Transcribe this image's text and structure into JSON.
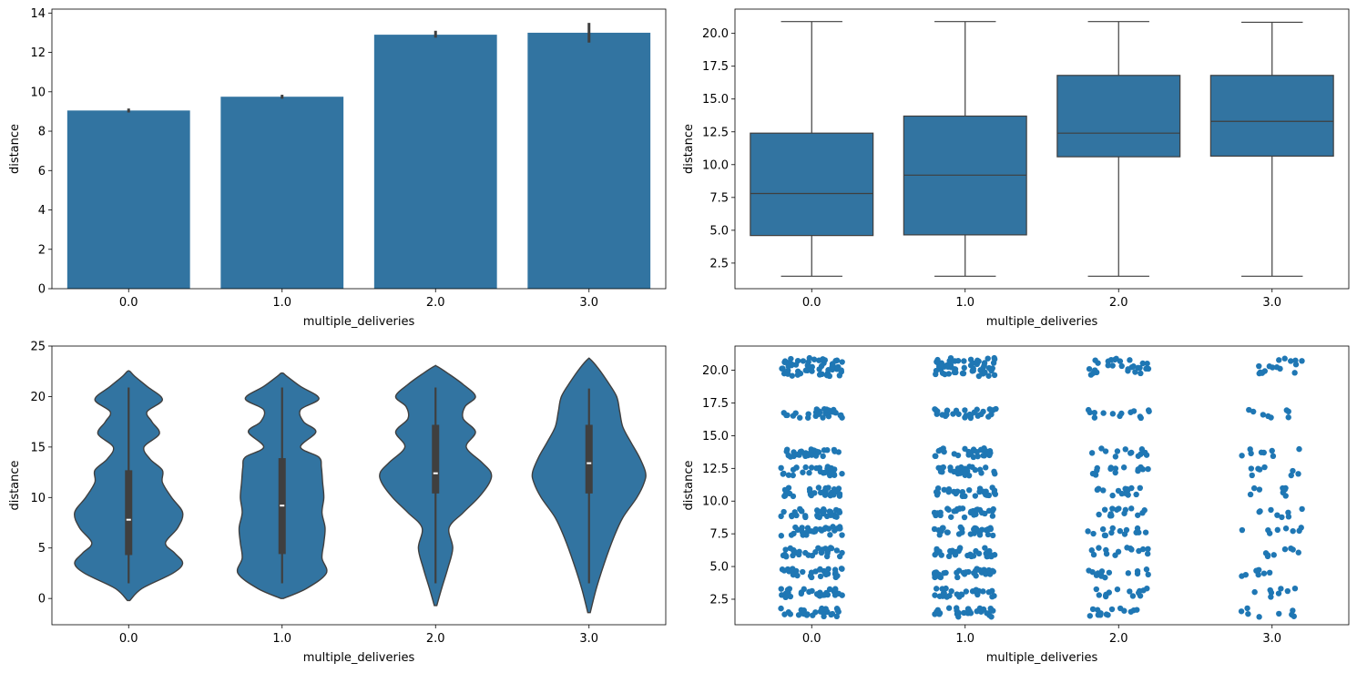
{
  "colors": {
    "primary": "#3274a1",
    "point": "#1f77b4",
    "line": "#3f3f3f",
    "frame": "#000000"
  },
  "chart_data": [
    {
      "type": "bar",
      "categories": [
        "0.0",
        "1.0",
        "2.0",
        "3.0"
      ],
      "values": [
        9.05,
        9.75,
        12.9,
        13.0
      ],
      "errors": [
        [
          8.95,
          9.15
        ],
        [
          9.65,
          9.85
        ],
        [
          12.75,
          13.1
        ],
        [
          12.5,
          13.5
        ]
      ],
      "xlabel": "multiple_deliveries",
      "ylabel": "distance",
      "ylim": [
        0,
        14.2
      ],
      "yticks": [
        0,
        2,
        4,
        6,
        8,
        10,
        12,
        14
      ],
      "ytick_labels": [
        "0",
        "2",
        "4",
        "6",
        "8",
        "10",
        "12",
        "14"
      ]
    },
    {
      "type": "box",
      "categories": [
        "0.0",
        "1.0",
        "2.0",
        "3.0"
      ],
      "boxes": [
        {
          "whislo": 1.5,
          "q1": 4.6,
          "med": 7.8,
          "q3": 12.4,
          "whishi": 20.9
        },
        {
          "whislo": 1.5,
          "q1": 4.65,
          "med": 9.2,
          "q3": 13.7,
          "whishi": 20.9
        },
        {
          "whislo": 1.5,
          "q1": 10.6,
          "med": 12.4,
          "q3": 16.8,
          "whishi": 20.9
        },
        {
          "whislo": 1.5,
          "q1": 10.65,
          "med": 13.3,
          "q3": 16.8,
          "whishi": 20.85
        }
      ],
      "xlabel": "multiple_deliveries",
      "ylabel": "distance",
      "ylim": [
        0.55,
        21.85
      ],
      "yticks": [
        2.5,
        5.0,
        7.5,
        10.0,
        12.5,
        15.0,
        17.5,
        20.0
      ],
      "ytick_labels": [
        "2.5",
        "5.0",
        "7.5",
        "10.0",
        "12.5",
        "15.0",
        "17.5",
        "20.0"
      ]
    },
    {
      "type": "violin",
      "categories": [
        "0.0",
        "1.0",
        "2.0",
        "3.0"
      ],
      "violins": [
        {
          "min": -0.2,
          "max": 22.5,
          "width": [
            [
              -0.2,
              0.02
            ],
            [
              1,
              0.22
            ],
            [
              2.5,
              0.72
            ],
            [
              3.5,
              0.88
            ],
            [
              4.5,
              0.75
            ],
            [
              5.5,
              0.6
            ],
            [
              7,
              0.8
            ],
            [
              8.5,
              0.88
            ],
            [
              10,
              0.7
            ],
            [
              11.5,
              0.55
            ],
            [
              12.7,
              0.55
            ],
            [
              13.8,
              0.35
            ],
            [
              15,
              0.25
            ],
            [
              16.3,
              0.5
            ],
            [
              17.5,
              0.38
            ],
            [
              18.5,
              0.3
            ],
            [
              19.7,
              0.55
            ],
            [
              21,
              0.3
            ],
            [
              22,
              0.1
            ],
            [
              22.5,
              0.02
            ]
          ],
          "whisker": [
            1.5,
            20.9
          ],
          "q1": 4.3,
          "q3": 12.7,
          "med": 7.8
        },
        {
          "min": 0.0,
          "max": 22.3,
          "width": [
            [
              0,
              0.02
            ],
            [
              1,
              0.4
            ],
            [
              2.5,
              0.72
            ],
            [
              4,
              0.65
            ],
            [
              5.5,
              0.68
            ],
            [
              7,
              0.7
            ],
            [
              8.5,
              0.65
            ],
            [
              10,
              0.68
            ],
            [
              11.5,
              0.66
            ],
            [
              13,
              0.64
            ],
            [
              14,
              0.6
            ],
            [
              15,
              0.3
            ],
            [
              16.5,
              0.55
            ],
            [
              17.5,
              0.35
            ],
            [
              18.7,
              0.3
            ],
            [
              19.8,
              0.6
            ],
            [
              21,
              0.3
            ],
            [
              22,
              0.08
            ],
            [
              22.3,
              0.02
            ]
          ],
          "whisker": [
            1.5,
            20.9
          ],
          "q1": 4.4,
          "q3": 13.9,
          "med": 9.2
        },
        {
          "min": -0.7,
          "max": 23.0,
          "width": [
            [
              -0.7,
              0.02
            ],
            [
              1,
              0.1
            ],
            [
              3,
              0.2
            ],
            [
              5,
              0.28
            ],
            [
              7,
              0.22
            ],
            [
              8.5,
              0.45
            ],
            [
              10,
              0.7
            ],
            [
              11.5,
              0.88
            ],
            [
              12.5,
              0.9
            ],
            [
              13.5,
              0.75
            ],
            [
              15,
              0.5
            ],
            [
              16.5,
              0.65
            ],
            [
              17.8,
              0.45
            ],
            [
              19,
              0.48
            ],
            [
              20,
              0.65
            ],
            [
              21.2,
              0.45
            ],
            [
              22.3,
              0.2
            ],
            [
              23,
              0.02
            ]
          ],
          "whisker": [
            1.5,
            20.9
          ],
          "q1": 10.4,
          "q3": 17.2,
          "med": 12.4
        },
        {
          "min": -1.4,
          "max": 23.7,
          "width": [
            [
              -1.4,
              0.02
            ],
            [
              1,
              0.12
            ],
            [
              3.5,
              0.25
            ],
            [
              6,
              0.4
            ],
            [
              8,
              0.55
            ],
            [
              10,
              0.78
            ],
            [
              11.5,
              0.9
            ],
            [
              12.5,
              0.92
            ],
            [
              14,
              0.82
            ],
            [
              15.5,
              0.68
            ],
            [
              17,
              0.55
            ],
            [
              18.5,
              0.5
            ],
            [
              20,
              0.45
            ],
            [
              21.5,
              0.3
            ],
            [
              22.8,
              0.15
            ],
            [
              23.7,
              0.02
            ]
          ],
          "whisker": [
            1.5,
            20.8
          ],
          "q1": 10.4,
          "q3": 17.2,
          "med": 13.4
        }
      ],
      "xlabel": "multiple_deliveries",
      "ylabel": "distance",
      "ylim": [
        -2.6,
        25.0
      ],
      "yticks": [
        0,
        5,
        10,
        15,
        20,
        25
      ],
      "ytick_labels": [
        "0",
        "5",
        "10",
        "15",
        "20",
        "25"
      ]
    },
    {
      "type": "scatter",
      "categories": [
        "0.0",
        "1.0",
        "2.0",
        "3.0"
      ],
      "levels": [
        1.5,
        3.0,
        4.5,
        6.1,
        7.7,
        9.1,
        10.7,
        12.3,
        13.7,
        16.7,
        19.9,
        20.6
      ],
      "density": [
        30,
        30,
        14,
        8
      ],
      "xlabel": "multiple_deliveries",
      "ylabel": "distance",
      "ylim": [
        0.55,
        21.85
      ],
      "yticks": [
        2.5,
        5.0,
        7.5,
        10.0,
        12.5,
        15.0,
        17.5,
        20.0
      ],
      "ytick_labels": [
        "2.5",
        "5.0",
        "7.5",
        "10.0",
        "12.5",
        "15.0",
        "17.5",
        "20.0"
      ]
    }
  ]
}
